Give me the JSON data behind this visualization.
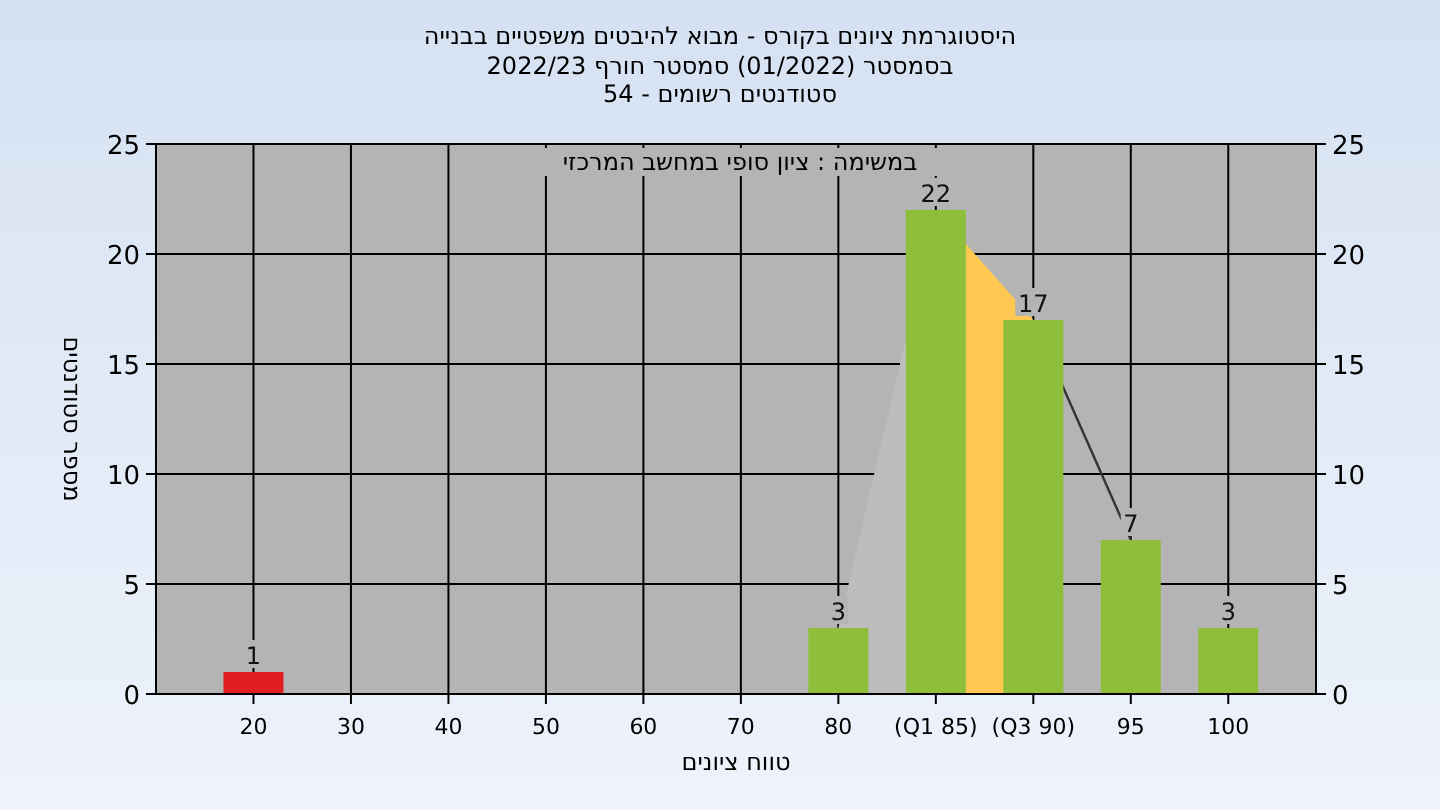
{
  "chart_data": {
    "type": "bar",
    "title": "היסטוגרמת ציונים בקורס - מבוא להיבטים משפטיים בבנייה",
    "subtitle": "בסמסטר  (01/2022)  סמסטר חורף 2022/23\nסטודנטים רשומים - 54",
    "xlabel": "טווח ציונים",
    "ylabel": "מספר סטודנטים",
    "annotations": [
      "במשימה : ציון סופי במחשב המרכזי"
    ],
    "categories": [
      "20",
      "30",
      "40",
      "50",
      "60",
      "70",
      "80",
      "(Q1 85)",
      "(Q3 90)",
      "95",
      "100"
    ],
    "series": [
      {
        "type": "area",
        "values": [
          null,
          null,
          null,
          null,
          null,
          null,
          3,
          22,
          null,
          null,
          null
        ],
        "color": "#bdbdbd"
      },
      {
        "type": "area",
        "values": [
          null,
          null,
          null,
          null,
          null,
          null,
          null,
          22,
          17,
          null,
          null
        ],
        "color": "#ffc850"
      },
      {
        "type": "line",
        "color": "#333333",
        "values": [
          null,
          null,
          null,
          null,
          null,
          null,
          null,
          null,
          17,
          7,
          null
        ]
      },
      {
        "values": [
          1,
          0,
          0,
          0,
          0,
          0,
          3,
          22,
          17,
          7,
          3
        ],
        "colors": [
          "#e02020",
          "#8fbf3a",
          "#8fbf3a",
          "#8fbf3a",
          "#8fbf3a",
          "#8fbf3a",
          "#8fbf3a",
          "#8fbf3a",
          "#8fbf3a",
          "#8fbf3a",
          "#8fbf3a"
        ],
        "value_labels": [
          "1",
          null,
          null,
          null,
          null,
          null,
          "3",
          "22",
          "17",
          "7",
          "3"
        ]
      }
    ],
    "ylim": [
      0,
      25
    ],
    "yticks": [
      0,
      5,
      10,
      15,
      20,
      25
    ],
    "y2lim": [
      0,
      25
    ],
    "y2ticks": [
      0,
      5,
      10,
      15,
      20,
      25
    ],
    "grid": true
  }
}
